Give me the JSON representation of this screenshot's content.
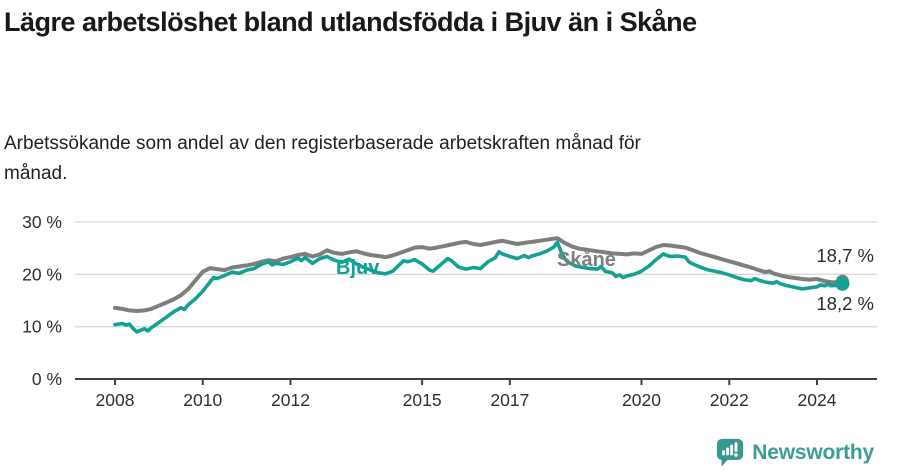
{
  "header": {
    "title": "Lägre arbetslöshet bland utlandsfödda i Bjuv än i Skåne",
    "subtitle": "Arbetssökande som andel av den registerbaserade arbetskraften månad för månad."
  },
  "chart_data": {
    "type": "line",
    "title": "Lägre arbetslöshet bland utlandsfödda i Bjuv än i Skåne",
    "xlabel": "",
    "ylabel": "",
    "unit": "%",
    "ylim": [
      0,
      30
    ],
    "xlim": [
      2007.1,
      2025.4
    ],
    "grid": true,
    "grid_color": "#d9d9d9",
    "axis_color": "#404040",
    "tick_label_color": "#2f2f2f",
    "y_ticks": [
      {
        "value": 30,
        "label": "30 %"
      },
      {
        "value": 20,
        "label": "20 %"
      },
      {
        "value": 10,
        "label": "10 %"
      },
      {
        "value": 0,
        "label": "0 %"
      }
    ],
    "x_ticks": [
      {
        "value": 2008,
        "label": "2008"
      },
      {
        "value": 2010,
        "label": "2010"
      },
      {
        "value": 2012,
        "label": "2012"
      },
      {
        "value": 2015,
        "label": "2015"
      },
      {
        "value": 2017,
        "label": "2017"
      },
      {
        "value": 2020,
        "label": "2020"
      },
      {
        "value": 2022,
        "label": "2022"
      },
      {
        "value": 2024,
        "label": "2024"
      }
    ],
    "series": [
      {
        "name": "Skåne",
        "color": "#7e7e7e",
        "line_width": 4,
        "end_dot_radius": 6.5,
        "end_label": "18,7 %",
        "end_value": 18.7,
        "points": [
          [
            2008.0,
            13.6
          ],
          [
            2008.17,
            13.4
          ],
          [
            2008.33,
            13.1
          ],
          [
            2008.5,
            13.0
          ],
          [
            2008.67,
            13.1
          ],
          [
            2008.83,
            13.4
          ],
          [
            2009.0,
            14.0
          ],
          [
            2009.17,
            14.6
          ],
          [
            2009.33,
            15.2
          ],
          [
            2009.5,
            16.0
          ],
          [
            2009.67,
            17.2
          ],
          [
            2009.83,
            18.8
          ],
          [
            2010.0,
            20.5
          ],
          [
            2010.17,
            21.2
          ],
          [
            2010.33,
            21.0
          ],
          [
            2010.5,
            20.8
          ],
          [
            2010.67,
            21.3
          ],
          [
            2010.83,
            21.5
          ],
          [
            2011.0,
            21.7
          ],
          [
            2011.17,
            22.0
          ],
          [
            2011.33,
            22.4
          ],
          [
            2011.5,
            22.7
          ],
          [
            2011.67,
            22.5
          ],
          [
            2011.83,
            23.0
          ],
          [
            2012.0,
            23.3
          ],
          [
            2012.17,
            23.7
          ],
          [
            2012.33,
            23.9
          ],
          [
            2012.5,
            23.4
          ],
          [
            2012.67,
            23.8
          ],
          [
            2012.83,
            24.6
          ],
          [
            2013.0,
            24.1
          ],
          [
            2013.17,
            23.9
          ],
          [
            2013.33,
            24.2
          ],
          [
            2013.5,
            24.4
          ],
          [
            2013.67,
            24.0
          ],
          [
            2013.83,
            23.7
          ],
          [
            2014.0,
            23.5
          ],
          [
            2014.17,
            23.3
          ],
          [
            2014.33,
            23.6
          ],
          [
            2014.5,
            24.1
          ],
          [
            2014.67,
            24.6
          ],
          [
            2014.83,
            25.1
          ],
          [
            2015.0,
            25.2
          ],
          [
            2015.17,
            24.9
          ],
          [
            2015.33,
            25.1
          ],
          [
            2015.5,
            25.4
          ],
          [
            2015.67,
            25.7
          ],
          [
            2015.83,
            26.0
          ],
          [
            2016.0,
            26.2
          ],
          [
            2016.17,
            25.8
          ],
          [
            2016.33,
            25.6
          ],
          [
            2016.5,
            25.9
          ],
          [
            2016.67,
            26.2
          ],
          [
            2016.83,
            26.4
          ],
          [
            2017.0,
            26.1
          ],
          [
            2017.17,
            25.8
          ],
          [
            2017.33,
            26.0
          ],
          [
            2017.5,
            26.2
          ],
          [
            2017.67,
            26.4
          ],
          [
            2017.83,
            26.6
          ],
          [
            2018.0,
            26.8
          ],
          [
            2018.08,
            26.9
          ],
          [
            2018.25,
            26.0
          ],
          [
            2018.42,
            25.3
          ],
          [
            2018.58,
            24.9
          ],
          [
            2018.75,
            24.7
          ],
          [
            2018.92,
            24.5
          ],
          [
            2019.0,
            24.4
          ],
          [
            2019.17,
            24.2
          ],
          [
            2019.33,
            24.0
          ],
          [
            2019.5,
            23.9
          ],
          [
            2019.67,
            23.8
          ],
          [
            2019.83,
            24.0
          ],
          [
            2020.0,
            23.9
          ],
          [
            2020.17,
            24.6
          ],
          [
            2020.33,
            25.2
          ],
          [
            2020.5,
            25.6
          ],
          [
            2020.67,
            25.5
          ],
          [
            2020.83,
            25.3
          ],
          [
            2021.0,
            25.1
          ],
          [
            2021.17,
            24.6
          ],
          [
            2021.33,
            24.1
          ],
          [
            2021.5,
            23.7
          ],
          [
            2021.67,
            23.3
          ],
          [
            2021.83,
            22.9
          ],
          [
            2022.0,
            22.5
          ],
          [
            2022.17,
            22.1
          ],
          [
            2022.33,
            21.7
          ],
          [
            2022.5,
            21.3
          ],
          [
            2022.67,
            20.8
          ],
          [
            2022.83,
            20.4
          ],
          [
            2022.92,
            20.6
          ],
          [
            2023.0,
            20.2
          ],
          [
            2023.17,
            19.8
          ],
          [
            2023.33,
            19.5
          ],
          [
            2023.5,
            19.3
          ],
          [
            2023.67,
            19.1
          ],
          [
            2023.83,
            19.0
          ],
          [
            2024.0,
            19.1
          ],
          [
            2024.17,
            18.7
          ],
          [
            2024.33,
            18.5
          ],
          [
            2024.5,
            18.5
          ],
          [
            2024.58,
            18.7
          ]
        ]
      },
      {
        "name": "Bjuv",
        "color": "#12a195",
        "line_width": 3.6,
        "end_dot_radius": 7,
        "end_label": "18,2 %",
        "end_value": 18.2,
        "points": [
          [
            2008.0,
            10.4
          ],
          [
            2008.17,
            10.6
          ],
          [
            2008.25,
            10.3
          ],
          [
            2008.33,
            10.5
          ],
          [
            2008.42,
            9.6
          ],
          [
            2008.5,
            9.0
          ],
          [
            2008.58,
            9.3
          ],
          [
            2008.67,
            9.6
          ],
          [
            2008.75,
            9.2
          ],
          [
            2008.83,
            9.8
          ],
          [
            2009.0,
            10.8
          ],
          [
            2009.17,
            11.8
          ],
          [
            2009.33,
            12.8
          ],
          [
            2009.5,
            13.6
          ],
          [
            2009.58,
            13.3
          ],
          [
            2009.67,
            14.2
          ],
          [
            2009.83,
            15.3
          ],
          [
            2010.0,
            16.8
          ],
          [
            2010.17,
            18.6
          ],
          [
            2010.25,
            19.4
          ],
          [
            2010.33,
            19.2
          ],
          [
            2010.5,
            19.8
          ],
          [
            2010.67,
            20.4
          ],
          [
            2010.83,
            20.2
          ],
          [
            2011.0,
            20.8
          ],
          [
            2011.17,
            21.1
          ],
          [
            2011.33,
            21.9
          ],
          [
            2011.5,
            22.4
          ],
          [
            2011.58,
            21.8
          ],
          [
            2011.67,
            22.1
          ],
          [
            2011.83,
            21.9
          ],
          [
            2012.0,
            22.4
          ],
          [
            2012.17,
            23.1
          ],
          [
            2012.25,
            22.6
          ],
          [
            2012.33,
            23.2
          ],
          [
            2012.5,
            22.1
          ],
          [
            2012.67,
            23.0
          ],
          [
            2012.83,
            23.4
          ],
          [
            2013.0,
            22.7
          ],
          [
            2013.17,
            22.3
          ],
          [
            2013.33,
            22.9
          ],
          [
            2013.5,
            22.0
          ],
          [
            2013.67,
            21.3
          ],
          [
            2013.83,
            20.8
          ],
          [
            2014.0,
            20.3
          ],
          [
            2014.17,
            20.1
          ],
          [
            2014.33,
            20.6
          ],
          [
            2014.5,
            22.0
          ],
          [
            2014.58,
            22.6
          ],
          [
            2014.67,
            22.4
          ],
          [
            2014.83,
            22.8
          ],
          [
            2015.0,
            22.0
          ],
          [
            2015.17,
            20.8
          ],
          [
            2015.25,
            20.6
          ],
          [
            2015.33,
            21.2
          ],
          [
            2015.5,
            22.4
          ],
          [
            2015.58,
            23.0
          ],
          [
            2015.67,
            22.6
          ],
          [
            2015.83,
            21.4
          ],
          [
            2016.0,
            21.0
          ],
          [
            2016.17,
            21.3
          ],
          [
            2016.33,
            21.1
          ],
          [
            2016.5,
            22.4
          ],
          [
            2016.67,
            23.2
          ],
          [
            2016.75,
            24.3
          ],
          [
            2016.83,
            23.9
          ],
          [
            2017.0,
            23.4
          ],
          [
            2017.17,
            23.0
          ],
          [
            2017.33,
            23.6
          ],
          [
            2017.42,
            23.2
          ],
          [
            2017.5,
            23.5
          ],
          [
            2017.67,
            23.9
          ],
          [
            2017.83,
            24.4
          ],
          [
            2018.0,
            25.2
          ],
          [
            2018.08,
            26.1
          ],
          [
            2018.17,
            24.3
          ],
          [
            2018.25,
            23.0
          ],
          [
            2018.33,
            22.3
          ],
          [
            2018.5,
            21.6
          ],
          [
            2018.67,
            21.3
          ],
          [
            2018.83,
            21.1
          ],
          [
            2019.0,
            21.0
          ],
          [
            2019.08,
            21.5
          ],
          [
            2019.17,
            20.6
          ],
          [
            2019.33,
            20.3
          ],
          [
            2019.42,
            19.6
          ],
          [
            2019.5,
            19.9
          ],
          [
            2019.58,
            19.4
          ],
          [
            2019.67,
            19.7
          ],
          [
            2019.83,
            20.0
          ],
          [
            2020.0,
            20.6
          ],
          [
            2020.17,
            21.6
          ],
          [
            2020.33,
            22.8
          ],
          [
            2020.5,
            23.9
          ],
          [
            2020.58,
            23.6
          ],
          [
            2020.67,
            23.4
          ],
          [
            2020.83,
            23.5
          ],
          [
            2021.0,
            23.3
          ],
          [
            2021.08,
            22.4
          ],
          [
            2021.17,
            22.0
          ],
          [
            2021.33,
            21.4
          ],
          [
            2021.5,
            20.9
          ],
          [
            2021.67,
            20.6
          ],
          [
            2021.83,
            20.3
          ],
          [
            2022.0,
            19.9
          ],
          [
            2022.17,
            19.4
          ],
          [
            2022.33,
            19.0
          ],
          [
            2022.5,
            18.8
          ],
          [
            2022.58,
            19.2
          ],
          [
            2022.67,
            18.9
          ],
          [
            2022.83,
            18.5
          ],
          [
            2023.0,
            18.3
          ],
          [
            2023.08,
            18.6
          ],
          [
            2023.17,
            18.2
          ],
          [
            2023.33,
            17.8
          ],
          [
            2023.5,
            17.5
          ],
          [
            2023.67,
            17.2
          ],
          [
            2023.83,
            17.4
          ],
          [
            2024.0,
            17.6
          ],
          [
            2024.08,
            18.0
          ],
          [
            2024.17,
            17.8
          ],
          [
            2024.25,
            18.1
          ],
          [
            2024.33,
            17.8
          ],
          [
            2024.42,
            17.9
          ],
          [
            2024.5,
            17.8
          ],
          [
            2024.58,
            18.2
          ]
        ]
      }
    ],
    "legend_position": "inline-labels"
  },
  "footer": {
    "brand": "Newsworthy",
    "brand_color": "#3a9d97",
    "logo_icon": "newsworthy-speech-bubble-barchart-icon"
  }
}
